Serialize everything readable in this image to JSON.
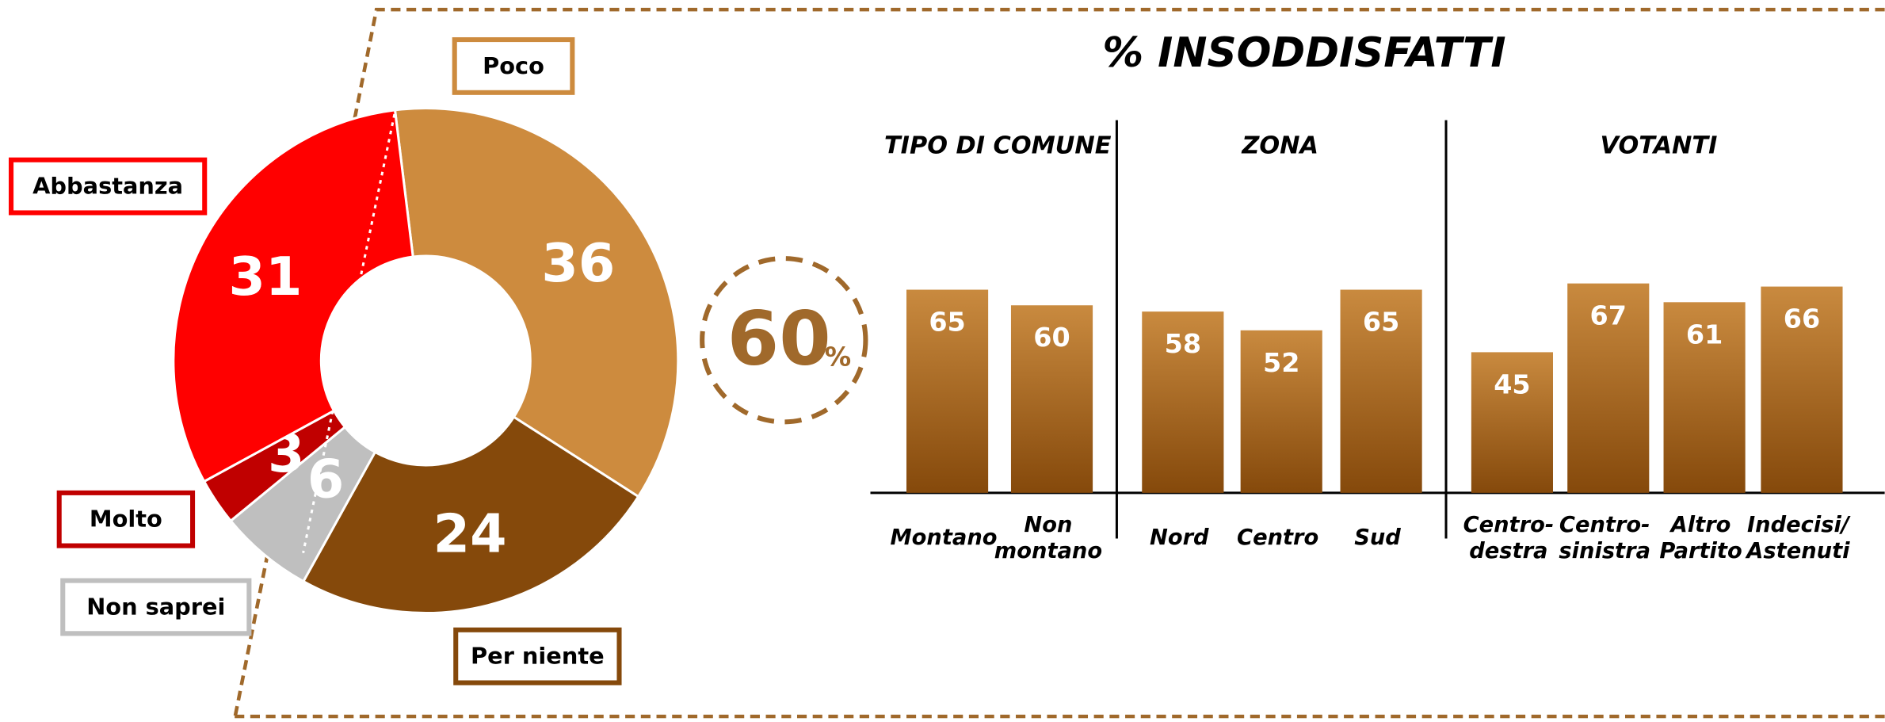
{
  "chart_data": [
    {
      "type": "donut",
      "categories": [
        "Poco",
        "Per niente",
        "Non saprei",
        "Molto",
        "Abbastanza"
      ],
      "values": [
        36,
        24,
        6,
        3,
        31
      ],
      "colors": [
        "#cd8b3e",
        "#85490b",
        "#bfbfbf",
        "#c00000",
        "#ff0000"
      ],
      "summary_value": 60,
      "summary_unit": "%"
    },
    {
      "type": "grouped_bar",
      "title": "% INSODDISFATTI",
      "ylim": [
        0,
        100
      ],
      "color_top": "#c98a3f",
      "color_bottom": "#85490b",
      "groups": [
        {
          "name": "TIPO DI COMUNE",
          "categories": [
            "Montano",
            "Non\nmontano"
          ],
          "values": [
            65,
            60
          ]
        },
        {
          "name": "ZONA",
          "categories": [
            "Nord",
            "Centro",
            "Sud"
          ],
          "values": [
            58,
            52,
            65
          ]
        },
        {
          "name": "VOTANTI",
          "categories": [
            "Centro-\ndestra",
            "Centro-\nsinistra",
            "Altro\nPartito",
            "Indecisi/\nAstenuti"
          ],
          "values": [
            45,
            67,
            61,
            66
          ]
        }
      ]
    }
  ]
}
